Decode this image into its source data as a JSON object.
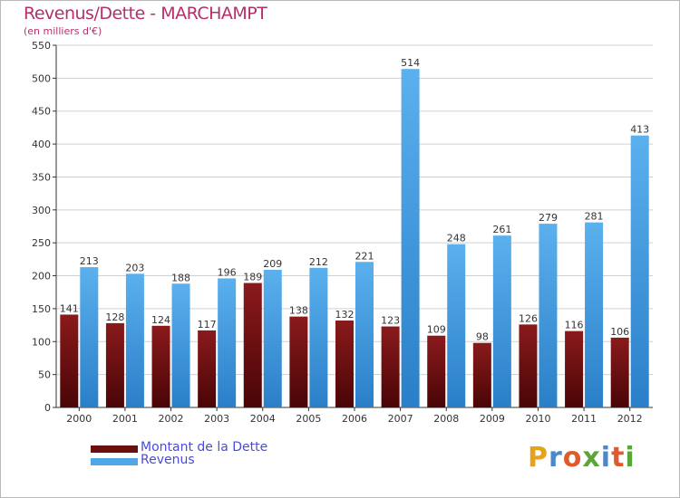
{
  "header": {
    "title": "Revenus/Dette - MARCHAMPT",
    "subtitle": "(en milliers d'€)"
  },
  "chart_data": {
    "type": "bar",
    "categories": [
      "2000",
      "2001",
      "2002",
      "2003",
      "2004",
      "2005",
      "2006",
      "2007",
      "2008",
      "2009",
      "2010",
      "2011",
      "2012"
    ],
    "series": [
      {
        "name": "Montant de la Dette",
        "values": [
          141,
          128,
          124,
          117,
          189,
          138,
          132,
          123,
          109,
          98,
          126,
          116,
          106
        ],
        "color": "#7a1416"
      },
      {
        "name": "Revenus",
        "values": [
          213,
          203,
          188,
          196,
          209,
          212,
          221,
          514,
          248,
          261,
          279,
          281,
          413
        ],
        "color": "#4fa7e8"
      }
    ],
    "ylim": [
      0,
      550
    ],
    "yticks": [
      0,
      50,
      100,
      150,
      200,
      250,
      300,
      350,
      400,
      450,
      500,
      550
    ],
    "grid": true,
    "legend": "bottom-left"
  },
  "legend": {
    "items": [
      {
        "label": "Montant de la Dette",
        "color": "#6b0e10"
      },
      {
        "label": "Revenus",
        "color": "#4fa7e8"
      }
    ]
  },
  "logo": {
    "letters": [
      "P",
      "r",
      "o",
      "x",
      "i",
      "t",
      "i"
    ],
    "colors": [
      "#e8a21a",
      "#4b87c9",
      "#e05a2b",
      "#5aa63b",
      "#4b87c9",
      "#e05a2b",
      "#5aa63b"
    ]
  }
}
